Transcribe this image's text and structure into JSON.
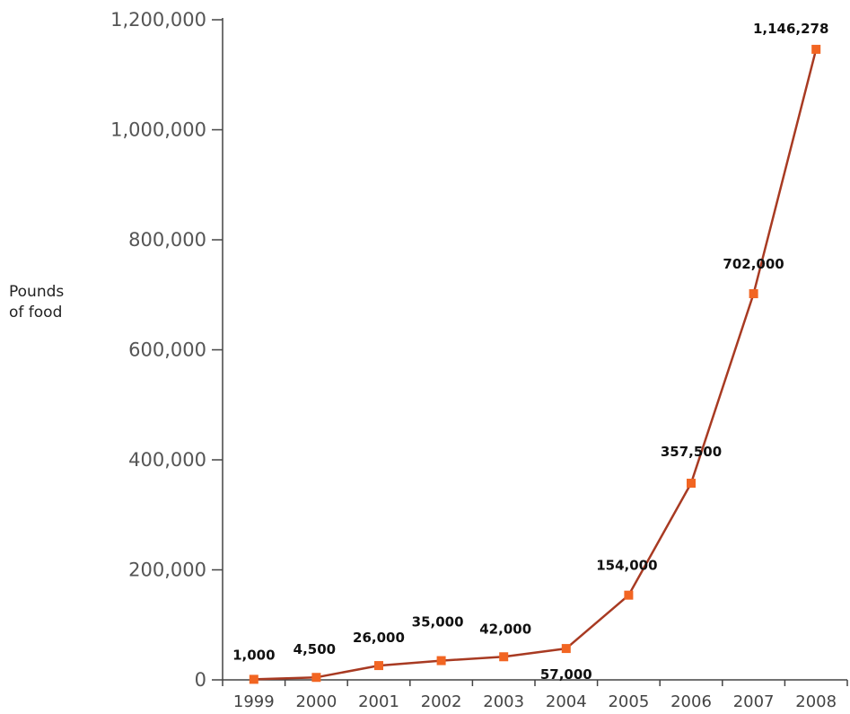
{
  "chart_data": {
    "type": "line",
    "title": "",
    "xlabel": "",
    "ylabel_lines": [
      "Pounds",
      "of food"
    ],
    "categories": [
      "1999",
      "2000",
      "2001",
      "2002",
      "2003",
      "2004",
      "2005",
      "2006",
      "2007",
      "2008"
    ],
    "series": [
      {
        "values": [
          1000,
          4500,
          26000,
          35000,
          42000,
          57000,
          154000,
          357500,
          702000,
          1146278
        ],
        "color": "#a83a22",
        "marker_color": "#f26522"
      }
    ],
    "data_labels": [
      "1,000",
      "4,500",
      "26,000",
      "35,000",
      "42,000",
      "57,000",
      "154,000",
      "357,500",
      "702,000",
      "1,146,278"
    ],
    "ylim": [
      0,
      1200000
    ],
    "yticks": [
      0,
      200000,
      400000,
      600000,
      800000,
      1000000,
      1200000
    ],
    "ytick_labels": [
      "0",
      "200,000",
      "400,000",
      "600,000",
      "800,000",
      "1,000,000",
      "1,200,000"
    ],
    "grid": false,
    "legend": "none"
  }
}
